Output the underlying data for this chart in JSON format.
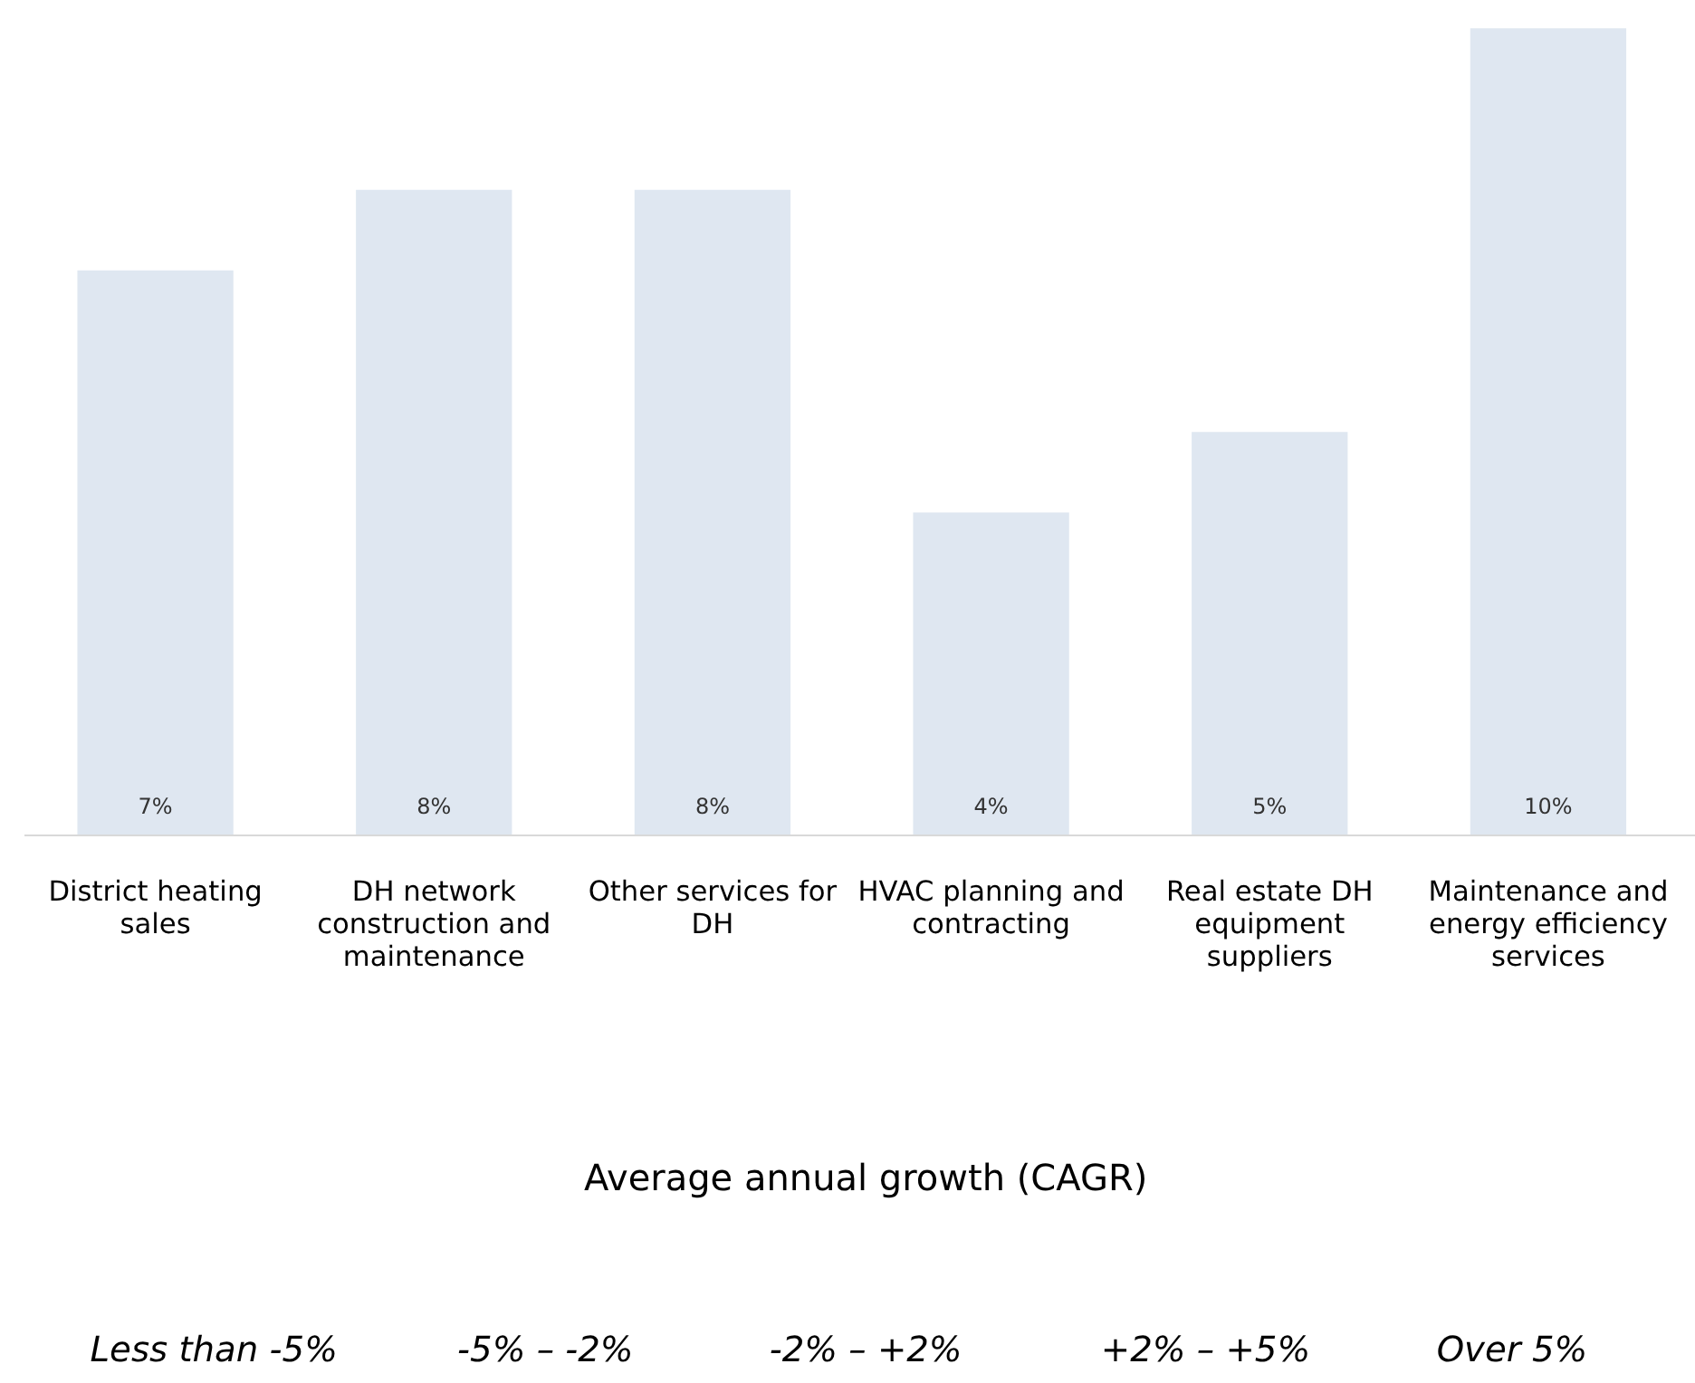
{
  "chart_data": {
    "type": "bar",
    "categories": [
      "District heating sales",
      "DH network construction and maintenance",
      "Other services for DH",
      "HVAC planning and contracting",
      "Real estate DH equipment suppliers",
      "Maintenance and energy efficiency services"
    ],
    "values": [
      7,
      8,
      8,
      4,
      5,
      10
    ],
    "value_labels": [
      "7%",
      "8%",
      "8%",
      "4%",
      "5%",
      "10%"
    ],
    "color": "#dfe7f1",
    "annotations": [
      "Average annual growth (CAGR)",
      "Less than -5%",
      "-5% – -2%",
      "-2% – +2%",
      "+2% – +5%",
      "Over 5%"
    ]
  }
}
